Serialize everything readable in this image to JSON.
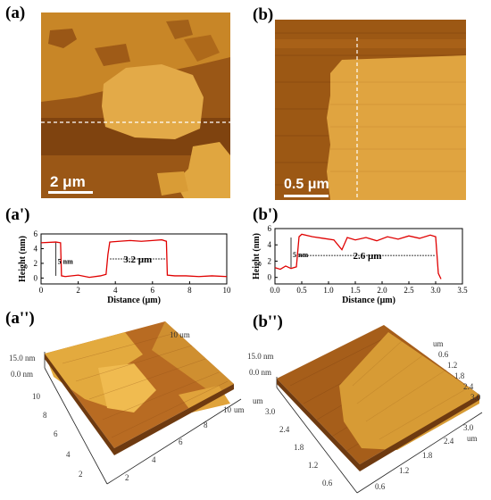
{
  "panels": {
    "a": "(a)",
    "b": "(b)",
    "a_prime": "(a')",
    "b_prime": "(b')",
    "a_dprime": "(a'')",
    "b_dprime": "(b'')"
  },
  "scalebars": {
    "a": "2 μm",
    "b": "0.5 μm"
  },
  "colors": {
    "terrace_dark": "#8a4a12",
    "terrace_light": "#d89a35",
    "profile_line": "#e00000",
    "cut_line": "#ffffff"
  },
  "chart_data": [
    {
      "type": "line",
      "id": "a_prime",
      "xlabel": "Distance (μm)",
      "ylabel": "Height (nm)",
      "xlim": [
        0,
        10
      ],
      "ylim": [
        -0.8,
        6
      ],
      "xticks": [
        0,
        2,
        4,
        6,
        8,
        10
      ],
      "yticks": [
        0,
        2,
        4,
        6
      ],
      "annotations": [
        "5 nm",
        "3.2 μm"
      ],
      "series": [
        {
          "x": [
            0,
            0.8,
            1.05,
            1.1,
            1.3,
            2.0,
            2.6,
            3.2,
            3.5,
            3.6,
            3.7,
            4.2,
            4.8,
            5.4,
            6.0,
            6.5,
            6.75,
            6.8,
            7.2,
            7.8,
            8.5,
            9.2,
            10
          ],
          "y": [
            4.8,
            4.9,
            4.8,
            0.3,
            0.2,
            0.4,
            0.1,
            0.3,
            0.5,
            3.2,
            4.9,
            5.0,
            5.1,
            5.0,
            5.1,
            5.2,
            5.0,
            0.4,
            0.3,
            0.3,
            0.2,
            0.3,
            0.2
          ]
        }
      ]
    },
    {
      "type": "line",
      "id": "b_prime",
      "xlabel": "Distance (μm)",
      "ylabel": "Height (nm)",
      "xlim": [
        0,
        3.5
      ],
      "ylim": [
        -0.8,
        6
      ],
      "xticks": [
        0.0,
        0.5,
        1.0,
        1.5,
        2.0,
        2.5,
        3.0,
        3.5
      ],
      "yticks": [
        0,
        2,
        4,
        6
      ],
      "annotations": [
        "5 nm",
        "2.6 μm"
      ],
      "series": [
        {
          "x": [
            0,
            0.1,
            0.2,
            0.3,
            0.4,
            0.45,
            0.5,
            0.7,
            0.9,
            1.1,
            1.25,
            1.35,
            1.5,
            1.7,
            1.9,
            2.1,
            2.3,
            2.5,
            2.7,
            2.9,
            3.0,
            3.05,
            3.1
          ],
          "y": [
            1.2,
            1.0,
            1.4,
            1.1,
            1.3,
            5.0,
            5.3,
            5.0,
            4.8,
            4.6,
            3.4,
            4.9,
            4.6,
            4.9,
            4.5,
            5.0,
            4.7,
            5.1,
            4.8,
            5.2,
            5.0,
            0.5,
            -0.2
          ]
        }
      ]
    },
    {
      "type": "surface",
      "id": "a_dprime",
      "zlabel_top": "15.0 nm",
      "zlabel_bottom": "0.0 nm",
      "axis1_ticks": [
        "10",
        "8",
        "6",
        "4",
        "2"
      ],
      "axis1_unit": "",
      "axis2_ticks": [
        "2",
        "4",
        "6",
        "8",
        "10"
      ],
      "axis2_unit": "um",
      "back_label": "10 um"
    },
    {
      "type": "surface",
      "id": "b_dprime",
      "zlabel_top": "15.0 nm",
      "zlabel_bottom": "0.0 nm",
      "axis1_ticks": [
        "3.0",
        "2.4",
        "1.8",
        "1.2",
        "0.6"
      ],
      "axis1_unit": "um",
      "axis2_ticks": [
        "0.6",
        "1.2",
        "1.8",
        "2.4",
        "3.0"
      ],
      "axis2_unit": "um",
      "back_ticks": [
        "0.6",
        "1.2",
        "1.8",
        "2.4",
        "3.0"
      ],
      "back_label": "um"
    }
  ]
}
